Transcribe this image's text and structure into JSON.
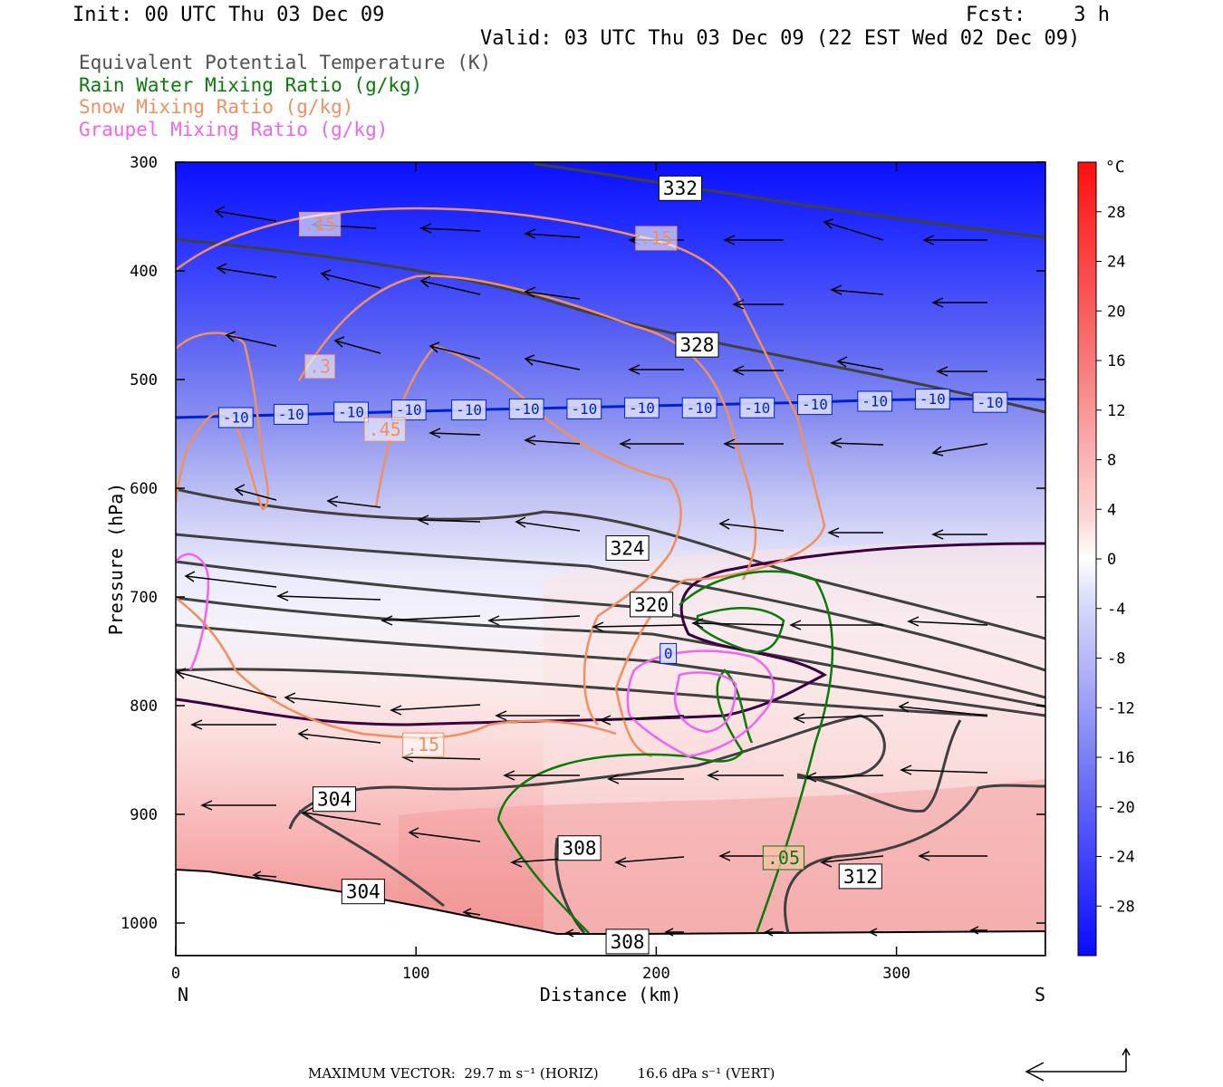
{
  "header": {
    "init": "Init: 00 UTC Thu 03 Dec 09",
    "fcst": "Fcst:    3 h",
    "valid": "Valid: 03 UTC Thu 03 Dec 09 (22 EST Wed 02 Dec 09)"
  },
  "legend": [
    {
      "label": "Equivalent Potential Temperature (K)",
      "color": "#505050"
    },
    {
      "label": "Rain Water Mixing Ratio (g/kg)",
      "color": "#0a7a0a"
    },
    {
      "label": "Snow Mixing Ratio (g/kg)",
      "color": "#f09060"
    },
    {
      "label": "Graupel Mixing Ratio (g/kg)",
      "color": "#ee66ee"
    }
  ],
  "colorbar": {
    "unit": "°C",
    "ticks": [
      "28",
      "24",
      "20",
      "16",
      "12",
      "8",
      "4",
      "0",
      "-4",
      "-8",
      "-12",
      "-16",
      "-20",
      "-24",
      "-28"
    ]
  },
  "footer": {
    "text": "MAXIMUM VECTOR:  29.7 m s⁻¹ (HORIZ)         16.6 dPa s⁻¹ (VERT)"
  },
  "chart_data": {
    "type": "cross-section",
    "xlabel": "Distance (km)",
    "ylabel": "Pressure (hPa)",
    "x_ticks": [
      0,
      100,
      200,
      300
    ],
    "y_ticks": [
      300,
      400,
      500,
      600,
      700,
      800,
      900,
      1000
    ],
    "xlim": [
      0,
      362
    ],
    "ylim": [
      300,
      1030
    ],
    "x_end_labels": {
      "left": "N",
      "right": "S"
    },
    "contour_labels": {
      "theta_e": [
        {
          "label": "332",
          "x": 210,
          "p": 324
        },
        {
          "label": "328",
          "x": 217,
          "p": 468
        },
        {
          "label": "324",
          "x": 188,
          "p": 655
        },
        {
          "label": "320",
          "x": 198,
          "p": 707
        },
        {
          "label": "304",
          "x": 66,
          "p": 886
        },
        {
          "label": "308",
          "x": 168,
          "p": 931
        },
        {
          "label": "312",
          "x": 285,
          "p": 957
        },
        {
          "label": "304",
          "x": 78,
          "p": 971
        },
        {
          "label": "308",
          "x": 188,
          "p": 1017
        }
      ],
      "temperature": [
        {
          "label": "-10",
          "x": 25,
          "p": 535
        },
        {
          "label": "-10",
          "x": 48,
          "p": 532
        },
        {
          "label": "-10",
          "x": 73,
          "p": 530
        },
        {
          "label": "-10",
          "x": 97,
          "p": 528
        },
        {
          "label": "-10",
          "x": 122,
          "p": 528
        },
        {
          "label": "-10",
          "x": 146,
          "p": 527
        },
        {
          "label": "-10",
          "x": 170,
          "p": 527
        },
        {
          "label": "-10",
          "x": 194,
          "p": 526
        },
        {
          "label": "-10",
          "x": 218,
          "p": 526
        },
        {
          "label": "-10",
          "x": 242,
          "p": 526
        },
        {
          "label": "-10",
          "x": 266,
          "p": 523
        },
        {
          "label": "-10",
          "x": 291,
          "p": 520
        },
        {
          "label": "-10",
          "x": 315,
          "p": 518
        },
        {
          "label": "-10",
          "x": 339,
          "p": 521
        },
        {
          "label": "0",
          "x": 205,
          "p": 752
        }
      ],
      "snow": [
        {
          "label": ".15",
          "x": 60,
          "p": 357
        },
        {
          "label": ".15",
          "x": 200,
          "p": 370
        },
        {
          "label": ".3",
          "x": 60,
          "p": 488
        },
        {
          "label": ".45",
          "x": 87,
          "p": 546
        },
        {
          "label": ".15",
          "x": 103,
          "p": 836
        }
      ],
      "rain": [
        {
          "label": ".05",
          "x": 253,
          "p": 940
        }
      ]
    },
    "colorbar_range": [
      -32,
      32
    ],
    "colorbar_ticks": [
      28,
      24,
      20,
      16,
      12,
      8,
      4,
      0,
      -4,
      -8,
      -12,
      -16,
      -20,
      -24,
      -28
    ]
  }
}
